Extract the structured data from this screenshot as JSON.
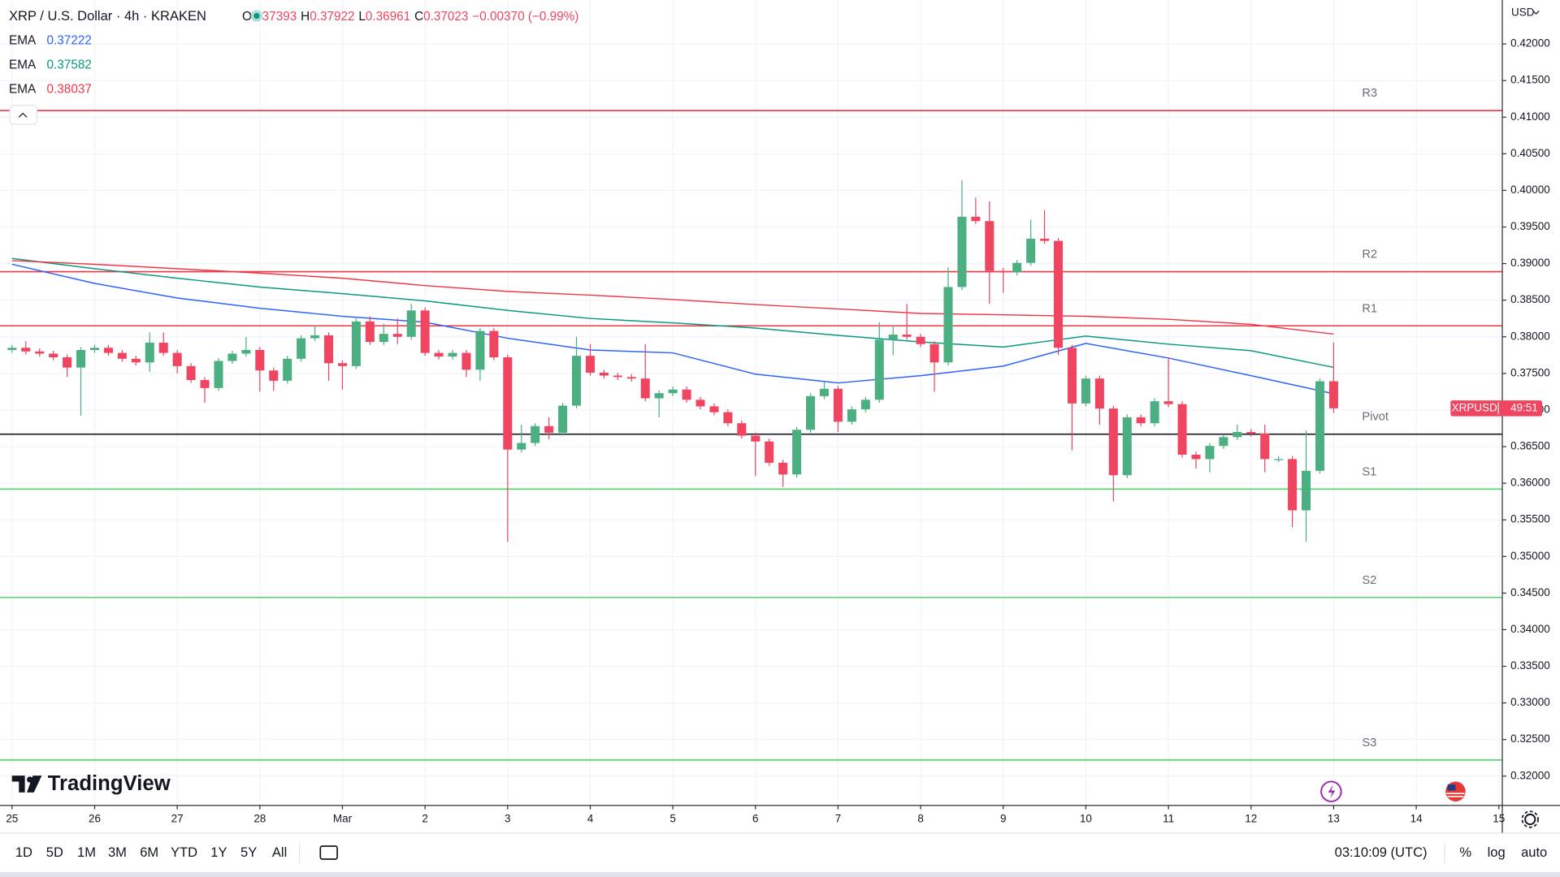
{
  "header": {
    "symbol": "XRP / U.S. Dollar · 4h · KRAKEN",
    "ohlc_labels": [
      "O",
      "H",
      "L",
      "C"
    ],
    "change": "−0.00370 (−0.99%)"
  },
  "brand": "TradingView",
  "toolbar": {
    "ranges": [
      "1D",
      "5D",
      "1M",
      "3M",
      "6M",
      "YTD",
      "1Y",
      "5Y",
      "All"
    ],
    "time": "03:10:09 (UTC)",
    "options": [
      "%",
      "log",
      "auto"
    ]
  },
  "chart_data": {
    "type": "candlestick",
    "up_color": "#4caf82",
    "down_color": "#ef4560",
    "x": [
      0,
      4,
      8,
      12,
      16,
      20,
      24,
      28,
      32,
      36,
      40,
      44,
      48,
      52,
      56,
      60,
      64,
      68,
      72,
      76,
      80,
      84,
      88,
      92,
      96,
      100,
      104,
      108,
      112,
      116,
      120,
      124,
      128,
      132,
      136,
      140,
      144,
      148,
      152,
      156,
      160,
      164,
      168,
      172,
      176,
      180,
      184,
      188,
      192,
      196,
      200,
      204,
      208,
      212,
      216,
      220,
      224,
      228,
      232,
      236,
      240,
      244,
      248,
      252,
      256,
      260,
      264,
      268,
      272,
      276,
      280,
      284,
      288,
      292,
      296,
      300,
      304,
      308,
      312,
      316,
      320,
      324,
      328,
      332,
      336,
      340,
      344,
      348,
      352,
      356,
      360,
      364,
      368,
      372,
      376,
      380,
      384
    ],
    "series": [
      {
        "name": "XRPUSD",
        "open": [
          0.3782,
          0.3785,
          0.378,
          0.3777,
          0.3772,
          0.3758,
          0.3782,
          0.3785,
          0.3778,
          0.377,
          0.3765,
          0.3792,
          0.3778,
          0.376,
          0.3741,
          0.373,
          0.3767,
          0.3777,
          0.3782,
          0.3754,
          0.374,
          0.377,
          0.3798,
          0.3802,
          0.3764,
          0.376,
          0.3821,
          0.3793,
          0.3804,
          0.38,
          0.3836,
          0.3778,
          0.3773,
          0.3778,
          0.3755,
          0.3808,
          0.3772,
          0.3646,
          0.3655,
          0.3678,
          0.3669,
          0.3706,
          0.3774,
          0.3751,
          0.3747,
          0.3745,
          0.3743,
          0.3716,
          0.3723,
          0.3728,
          0.3714,
          0.3705,
          0.3697,
          0.3682,
          0.3665,
          0.3657,
          0.3628,
          0.3612,
          0.3673,
          0.3719,
          0.3729,
          0.3684,
          0.3701,
          0.3714,
          0.3796,
          0.3803,
          0.38,
          0.379,
          0.3765,
          0.3868,
          0.3964,
          0.3958,
          0.389,
          0.3888,
          0.3901,
          0.3934,
          0.3931,
          0.3785,
          0.3709,
          0.3743,
          0.3702,
          0.3611,
          0.369,
          0.3682,
          0.3712,
          0.3708,
          0.3639,
          0.3633,
          0.3651,
          0.3663,
          0.367,
          0.3668,
          0.3633,
          0.3633,
          0.3563,
          0.3617,
          0.37393
        ],
        "high": [
          0.3789,
          0.3794,
          0.3784,
          0.3781,
          0.3776,
          0.3786,
          0.3789,
          0.3789,
          0.3782,
          0.3774,
          0.3806,
          0.3806,
          0.3782,
          0.3764,
          0.3745,
          0.3771,
          0.3781,
          0.38,
          0.3786,
          0.3758,
          0.3774,
          0.3802,
          0.3815,
          0.3806,
          0.3768,
          0.3825,
          0.3828,
          0.3818,
          0.3825,
          0.3845,
          0.384,
          0.3782,
          0.3782,
          0.3782,
          0.3812,
          0.3812,
          0.3776,
          0.368,
          0.3682,
          0.369,
          0.371,
          0.38,
          0.379,
          0.3755,
          0.3751,
          0.3749,
          0.379,
          0.3727,
          0.3732,
          0.3732,
          0.3718,
          0.3709,
          0.3701,
          0.3686,
          0.3669,
          0.3661,
          0.3632,
          0.3677,
          0.3723,
          0.374,
          0.3733,
          0.3705,
          0.3718,
          0.382,
          0.3815,
          0.3845,
          0.3804,
          0.3794,
          0.3895,
          0.4014,
          0.399,
          0.3985,
          0.3894,
          0.3905,
          0.396,
          0.3973,
          0.3935,
          0.3789,
          0.3747,
          0.3747,
          0.3706,
          0.3694,
          0.3694,
          0.3716,
          0.3772,
          0.3712,
          0.3643,
          0.3655,
          0.3667,
          0.368,
          0.3674,
          0.368,
          0.3637,
          0.3637,
          0.3672,
          0.3743,
          0.37922
        ],
        "low": [
          0.3778,
          0.3776,
          0.3773,
          0.3768,
          0.3745,
          0.3692,
          0.3778,
          0.3774,
          0.3766,
          0.3761,
          0.3752,
          0.3774,
          0.375,
          0.3737,
          0.371,
          0.3726,
          0.3763,
          0.3773,
          0.3725,
          0.3726,
          0.3736,
          0.3766,
          0.3794,
          0.374,
          0.3728,
          0.3756,
          0.3789,
          0.3789,
          0.379,
          0.3796,
          0.3774,
          0.3769,
          0.3769,
          0.3745,
          0.374,
          0.3768,
          0.352,
          0.3642,
          0.3651,
          0.366,
          0.3665,
          0.3702,
          0.3747,
          0.3743,
          0.3741,
          0.3739,
          0.3712,
          0.369,
          0.3719,
          0.371,
          0.3701,
          0.3693,
          0.3678,
          0.3661,
          0.361,
          0.3624,
          0.3595,
          0.3608,
          0.3669,
          0.3715,
          0.367,
          0.368,
          0.3697,
          0.371,
          0.3775,
          0.3796,
          0.3786,
          0.3725,
          0.3761,
          0.3864,
          0.3954,
          0.3845,
          0.386,
          0.3884,
          0.3897,
          0.3927,
          0.3775,
          0.3645,
          0.3705,
          0.368,
          0.3575,
          0.3607,
          0.3678,
          0.3678,
          0.3704,
          0.3635,
          0.362,
          0.3615,
          0.3647,
          0.3659,
          0.3664,
          0.3615,
          0.3629,
          0.354,
          0.352,
          0.3613,
          0.36961
        ],
        "close": [
          0.3785,
          0.378,
          0.3777,
          0.3772,
          0.3758,
          0.3782,
          0.3785,
          0.3778,
          0.377,
          0.3765,
          0.3792,
          0.3778,
          0.376,
          0.3741,
          0.373,
          0.3767,
          0.3777,
          0.3782,
          0.3754,
          0.374,
          0.377,
          0.3798,
          0.3802,
          0.3764,
          0.376,
          0.3821,
          0.3793,
          0.3804,
          0.38,
          0.3836,
          0.3778,
          0.3773,
          0.3778,
          0.3755,
          0.3808,
          0.3772,
          0.3646,
          0.3655,
          0.3678,
          0.3669,
          0.3706,
          0.3774,
          0.3751,
          0.3747,
          0.3745,
          0.3743,
          0.3716,
          0.3723,
          0.3728,
          0.3714,
          0.3705,
          0.3697,
          0.3682,
          0.3665,
          0.3657,
          0.3628,
          0.3612,
          0.3673,
          0.3719,
          0.3729,
          0.3684,
          0.3701,
          0.3714,
          0.3796,
          0.3803,
          0.38,
          0.379,
          0.3765,
          0.3868,
          0.3964,
          0.3958,
          0.389,
          0.3888,
          0.3901,
          0.3934,
          0.3931,
          0.3785,
          0.3709,
          0.3743,
          0.3702,
          0.3611,
          0.369,
          0.3682,
          0.3712,
          0.3708,
          0.3639,
          0.3633,
          0.3651,
          0.3663,
          0.367,
          0.3668,
          0.3633,
          0.3633,
          0.3563,
          0.3617,
          0.37393,
          0.37023
        ]
      }
    ],
    "ema": [
      {
        "name": "EMA",
        "color": "#2962ff",
        "x": [
          0,
          24,
          48,
          72,
          96,
          120,
          144,
          168,
          192,
          216,
          240,
          264,
          288,
          312,
          336,
          360,
          384
        ],
        "values": [
          0.3899,
          0.3873,
          0.3853,
          0.3839,
          0.3828,
          0.382,
          0.3798,
          0.3782,
          0.3778,
          0.3749,
          0.3737,
          0.3747,
          0.376,
          0.3791,
          0.3771,
          0.3747,
          0.37222
        ]
      },
      {
        "name": "EMA",
        "color": "#089981",
        "x": [
          0,
          24,
          48,
          72,
          96,
          120,
          144,
          168,
          192,
          216,
          240,
          264,
          288,
          312,
          336,
          360,
          384
        ],
        "values": [
          0.3907,
          0.3893,
          0.388,
          0.3868,
          0.3859,
          0.3849,
          0.3836,
          0.3825,
          0.3819,
          0.3812,
          0.3802,
          0.3793,
          0.3786,
          0.3801,
          0.379,
          0.3781,
          0.37582
        ]
      },
      {
        "name": "EMA",
        "color": "#f23645",
        "x": [
          0,
          24,
          48,
          72,
          96,
          120,
          144,
          168,
          192,
          216,
          240,
          264,
          288,
          312,
          336,
          360,
          384
        ],
        "values": [
          0.3904,
          0.3899,
          0.3893,
          0.3887,
          0.388,
          0.387,
          0.3862,
          0.3857,
          0.3851,
          0.3844,
          0.3838,
          0.3832,
          0.383,
          0.3828,
          0.3824,
          0.3817,
          0.38037
        ]
      }
    ],
    "levels": [
      {
        "label": "R3",
        "value": 0.4109,
        "color": "#f23645"
      },
      {
        "label": "R2",
        "value": 0.3889,
        "color": "#f23645"
      },
      {
        "label": "R1",
        "value": 0.3815,
        "color": "#f23645"
      },
      {
        "label": "Pivot",
        "value": 0.3667,
        "color": "#131722"
      },
      {
        "label": "S1",
        "value": 0.3592,
        "color": "#4cd964"
      },
      {
        "label": "S2",
        "value": 0.3444,
        "color": "#4cd964"
      },
      {
        "label": "S3",
        "value": 0.3222,
        "color": "#4cd964"
      }
    ],
    "price_tag": {
      "label": "XRPUSD",
      "countdown": "49:51"
    },
    "y_unit": "USD",
    "grid": true,
    "xlim": [
      -3.5,
      433
    ],
    "xticks": [
      {
        "value": 0,
        "label": "25"
      },
      {
        "value": 24,
        "label": "26"
      },
      {
        "value": 48,
        "label": "27"
      },
      {
        "value": 72,
        "label": "28"
      },
      {
        "value": 96,
        "label": "Mar"
      },
      {
        "value": 120,
        "label": "2"
      },
      {
        "value": 144,
        "label": "3"
      },
      {
        "value": 168,
        "label": "4"
      },
      {
        "value": 192,
        "label": "5"
      },
      {
        "value": 216,
        "label": "6"
      },
      {
        "value": 240,
        "label": "7"
      },
      {
        "value": 264,
        "label": "8"
      },
      {
        "value": 288,
        "label": "9"
      },
      {
        "value": 312,
        "label": "10"
      },
      {
        "value": 336,
        "label": "11"
      },
      {
        "value": 360,
        "label": "12"
      },
      {
        "value": 384,
        "label": "13"
      },
      {
        "value": 408,
        "label": "14"
      },
      {
        "value": 432,
        "label": "15"
      }
    ],
    "ylim": [
      0.316,
      0.426
    ],
    "yticks": [
      {
        "value": 0.32,
        "label": "0.32000"
      },
      {
        "value": 0.325,
        "label": "0.32500"
      },
      {
        "value": 0.33,
        "label": "0.33000"
      },
      {
        "value": 0.335,
        "label": "0.33500"
      },
      {
        "value": 0.34,
        "label": "0.34000"
      },
      {
        "value": 0.345,
        "label": "0.34500"
      },
      {
        "value": 0.35,
        "label": "0.35000"
      },
      {
        "value": 0.355,
        "label": "0.35500"
      },
      {
        "value": 0.36,
        "label": "0.36000"
      },
      {
        "value": 0.365,
        "label": "0.36500"
      },
      {
        "value": 0.37,
        "label": "0.37000"
      },
      {
        "value": 0.375,
        "label": "0.37500"
      },
      {
        "value": 0.38,
        "label": "0.38000"
      },
      {
        "value": 0.385,
        "label": "0.38500"
      },
      {
        "value": 0.39,
        "label": "0.39000"
      },
      {
        "value": 0.395,
        "label": "0.39500"
      },
      {
        "value": 0.4,
        "label": "0.40000"
      },
      {
        "value": 0.405,
        "label": "0.40500"
      },
      {
        "value": 0.41,
        "label": "0.41000"
      },
      {
        "value": 0.415,
        "label": "0.41500"
      },
      {
        "value": 0.42,
        "label": "0.42000"
      }
    ]
  }
}
